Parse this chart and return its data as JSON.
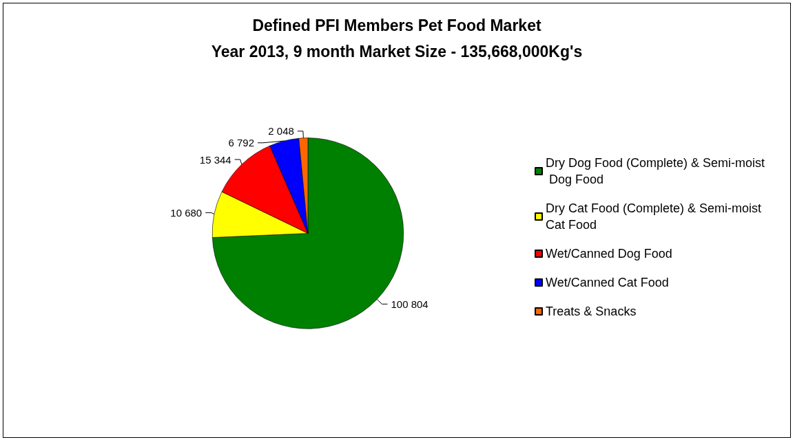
{
  "chart_data": {
    "type": "pie",
    "title": "Defined PFI Members Pet Food Market",
    "subtitle": "Year 2013, 9 month Market Size - 135,668,000Kg's",
    "categories": [
      "Dry Dog Food (Complete) & Semi-moist Dog Food",
      "Dry Cat Food (Complete) & Semi-moist Cat Food",
      "Wet/Canned Dog Food",
      "Wet/Canned Cat Food",
      "Treats & Snacks"
    ],
    "values": [
      100804,
      10680,
      15344,
      6792,
      2048
    ],
    "value_labels": [
      "100 804",
      "10 680",
      "15 344",
      "6 792",
      "2 048"
    ],
    "colors": [
      "#008000",
      "#ffff00",
      "#ff0000",
      "#0000ff",
      "#ff6600"
    ],
    "legend": "right"
  }
}
